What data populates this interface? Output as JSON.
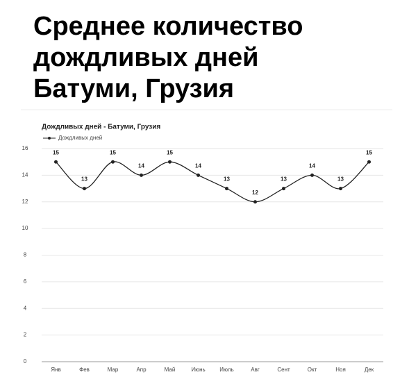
{
  "heading": [
    "Среднее количество",
    "дождливых дней",
    "Батуми, Грузия"
  ],
  "chart_data": {
    "type": "line",
    "title": "Дождливых дней - Батуми, Грузия",
    "categories": [
      "Янв",
      "Фев",
      "Мар",
      "Апр",
      "Май",
      "Июнь",
      "Июль",
      "Авг",
      "Сент",
      "Окт",
      "Ноя",
      "Дек"
    ],
    "series": [
      {
        "name": "Дождливых дней",
        "color": "#222222",
        "values": [
          15,
          13,
          15,
          14,
          15,
          14,
          13,
          12,
          13,
          14,
          13,
          15
        ]
      }
    ],
    "ylim": [
      0,
      16
    ],
    "yticks": [
      0,
      2,
      4,
      6,
      8,
      10,
      12,
      14,
      16
    ],
    "grid": true,
    "smooth": true,
    "data_labels": true,
    "legend": "top-left"
  }
}
